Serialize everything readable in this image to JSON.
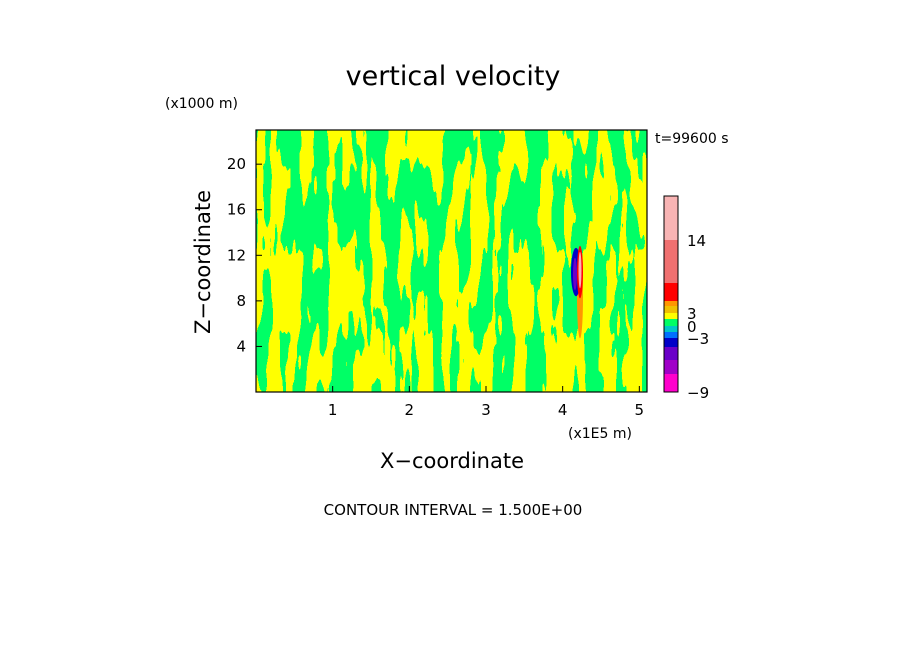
{
  "chart_data": {
    "type": "heatmap",
    "title": "vertical velocity",
    "xlabel": "X−coordinate",
    "ylabel": "Z−coordinate",
    "x_scale_label": "(x1E5 m)",
    "y_scale_label": "(x1000 m)",
    "time_label": "t=99600 s",
    "contour_note": "CONTOUR INTERVAL = 1.500E+00",
    "xlim": [
      0,
      5.1
    ],
    "ylim": [
      0,
      23
    ],
    "x_ticks": [
      1,
      2,
      3,
      4,
      5
    ],
    "x_tick_labels": [
      "1",
      "2",
      "3",
      "4",
      "5"
    ],
    "y_ticks": [
      4,
      8,
      12,
      16,
      20
    ],
    "y_tick_labels": [
      "4",
      "8",
      "12",
      "16",
      "20"
    ],
    "colorbar": {
      "levels": [
        -9,
        -7.5,
        -6,
        -4.5,
        -3,
        -1.5,
        0,
        1.5,
        3,
        4.5,
        6,
        9,
        14,
        19
      ],
      "colors": [
        "#ff00cc",
        "#a000c8",
        "#6a00c8",
        "#0000c8",
        "#0070ff",
        "#00c8c8",
        "#00ff66",
        "#ffff00",
        "#f0c000",
        "#ff9600",
        "#ff0000",
        "#f07070",
        "#f8b4b4"
      ],
      "tick_values": [
        -9,
        -3,
        0,
        3,
        14
      ],
      "tick_labels": [
        "−9",
        "−3",
        "0",
        "3",
        "14"
      ]
    },
    "field": {
      "background_level": "0 to 1.5",
      "dominant_colors": [
        "#ffff00",
        "#00ff66"
      ],
      "core_x": 4.2,
      "core_z_range": [
        7,
        13
      ],
      "core_levels": [
        -9,
        14
      ]
    }
  }
}
